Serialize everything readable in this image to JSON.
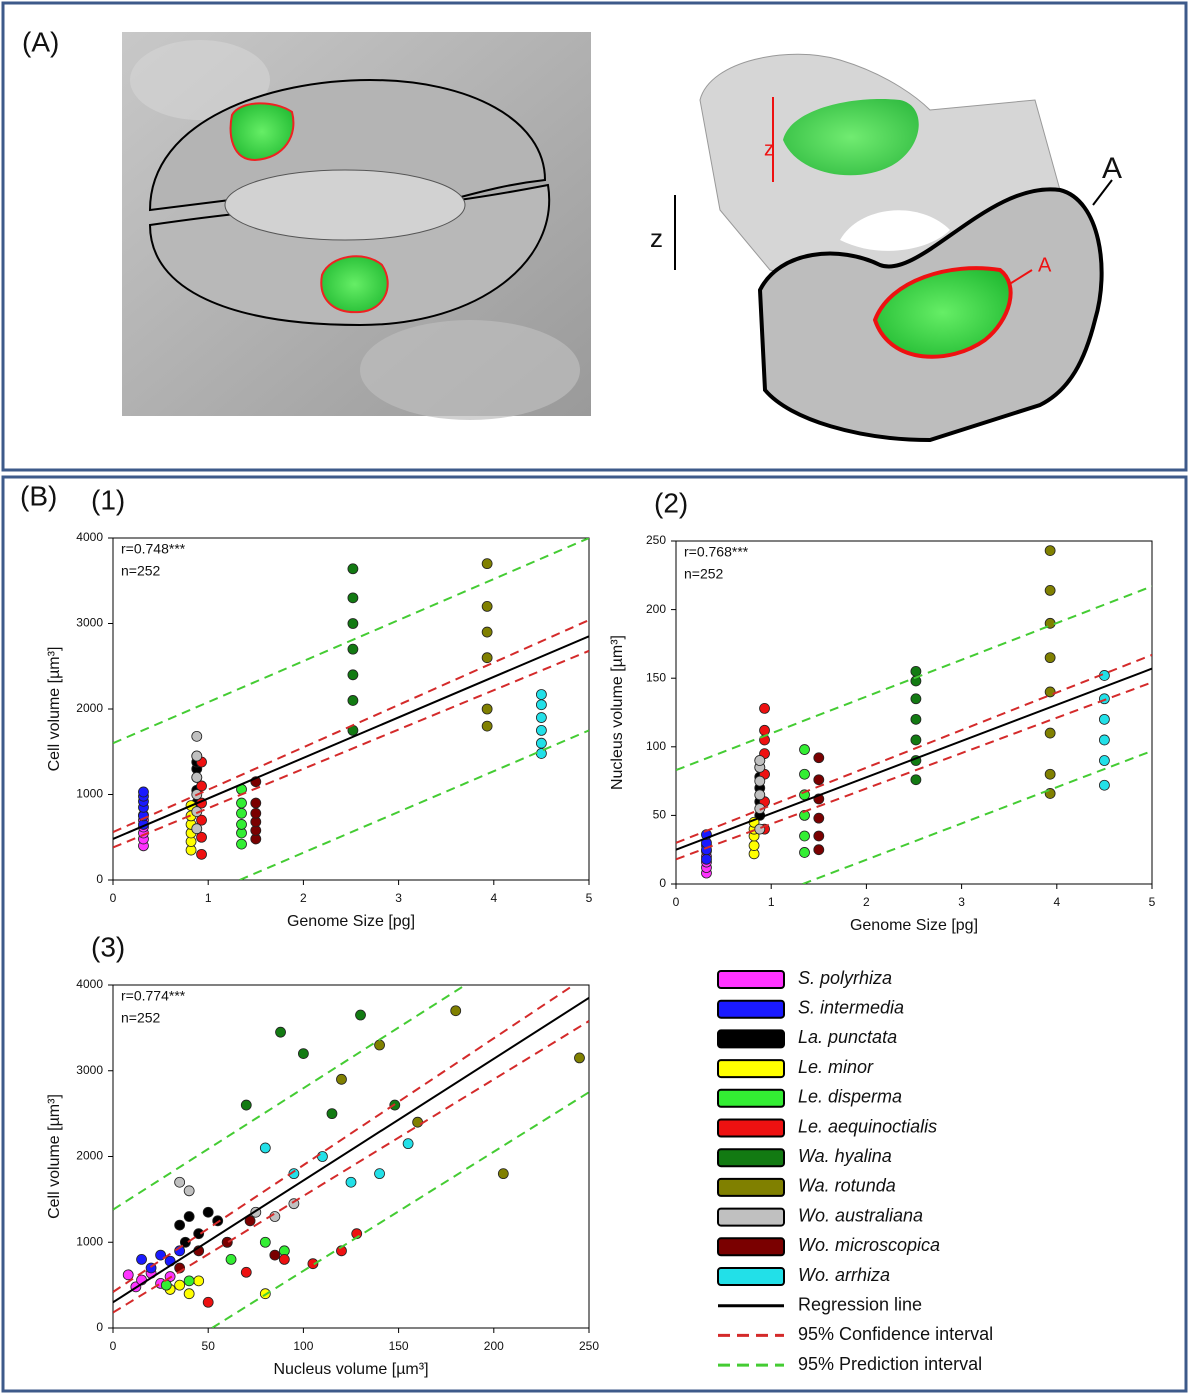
{
  "panel_a": {
    "label": "(A)",
    "annotations": [
      "z",
      "A",
      "z",
      "A"
    ]
  },
  "panel_b": {
    "label": "(B)"
  },
  "chart_data": [
    {
      "type": "scatter",
      "label": "(1)",
      "annotations": [
        "r=0.748***",
        "n=252"
      ],
      "xlabel": "Genome Size [pg]",
      "ylabel": "Cell volume [µm³]",
      "xlim": [
        0,
        5
      ],
      "xticks": [
        0,
        1,
        2,
        3,
        4,
        5
      ],
      "ylim": [
        0,
        4000
      ],
      "yticks": [
        0,
        1000,
        2000,
        3000,
        4000
      ],
      "series": [
        {
          "color": "#ff33ff",
          "x": [
            0.32,
            0.32,
            0.32,
            0.32,
            0.32,
            0.32
          ],
          "values": [
            400,
            480,
            550,
            620,
            700,
            760
          ]
        },
        {
          "color": "#1a1aff",
          "x": [
            0.32,
            0.32,
            0.32,
            0.32,
            0.32,
            0.32
          ],
          "values": [
            650,
            750,
            850,
            920,
            980,
            1030
          ]
        },
        {
          "color": "#000000",
          "x": [
            0.88,
            0.88,
            0.88,
            0.88,
            0.88,
            0.88
          ],
          "values": [
            900,
            1050,
            1200,
            1300,
            1380,
            1450
          ]
        },
        {
          "color": "#ffff00",
          "x": [
            0.82,
            0.82,
            0.82,
            0.82,
            0.82,
            0.82
          ],
          "values": [
            350,
            450,
            550,
            650,
            750,
            870
          ]
        },
        {
          "color": "#33ee33",
          "x": [
            1.35,
            1.35,
            1.35,
            1.35,
            1.35,
            1.35
          ],
          "values": [
            420,
            550,
            650,
            780,
            900,
            1060
          ]
        },
        {
          "color": "#ee1111",
          "x": [
            0.93,
            0.93,
            0.93,
            0.93,
            0.93,
            0.93
          ],
          "values": [
            300,
            500,
            700,
            900,
            1100,
            1380
          ]
        },
        {
          "color": "#127a12",
          "x": [
            2.52,
            2.52,
            2.52,
            2.52,
            2.52,
            2.52,
            2.52
          ],
          "values": [
            1750,
            2100,
            2400,
            2700,
            3000,
            3300,
            3640
          ]
        },
        {
          "color": "#808000",
          "x": [
            3.93,
            3.93,
            3.93,
            3.93,
            3.93,
            3.93
          ],
          "values": [
            1800,
            2000,
            2600,
            2900,
            3200,
            3700
          ]
        },
        {
          "color": "#c0c0c0",
          "x": [
            0.88,
            0.88,
            0.88,
            0.88,
            0.88,
            0.88
          ],
          "values": [
            600,
            800,
            1000,
            1200,
            1450,
            1680
          ]
        },
        {
          "color": "#7a0000",
          "x": [
            1.5,
            1.5,
            1.5,
            1.5,
            1.5,
            1.5
          ],
          "values": [
            480,
            580,
            680,
            780,
            900,
            1150
          ]
        },
        {
          "color": "#22e0e8",
          "x": [
            4.5,
            4.5,
            4.5,
            4.5,
            4.5,
            4.5
          ],
          "values": [
            1480,
            1600,
            1750,
            1900,
            2050,
            2170
          ]
        }
      ],
      "lines": [
        {
          "color": "#000000",
          "style": "solid",
          "x": [
            0,
            5
          ],
          "y": [
            480,
            2850
          ]
        },
        {
          "color": "#d42a2a",
          "style": "dashed",
          "x": [
            0,
            5
          ],
          "y": [
            560,
            3040
          ]
        },
        {
          "color": "#d42a2a",
          "style": "dashed",
          "x": [
            0,
            5
          ],
          "y": [
            380,
            2680
          ]
        },
        {
          "color": "#44cc33",
          "style": "dashed",
          "x": [
            0,
            5
          ],
          "y": [
            1600,
            4000
          ]
        },
        {
          "color": "#44cc33",
          "style": "dashed",
          "x": [
            1.33,
            5
          ],
          "y": [
            0,
            1750
          ]
        }
      ]
    },
    {
      "type": "scatter",
      "label": "(2)",
      "annotations": [
        "r=0.768***",
        "n=252"
      ],
      "xlabel": "Genome Size [pg]",
      "ylabel": "Nucleus volume [µm³]",
      "xlim": [
        0,
        5
      ],
      "xticks": [
        0,
        1,
        2,
        3,
        4,
        5
      ],
      "ylim": [
        0,
        250
      ],
      "yticks": [
        0,
        50,
        100,
        150,
        200,
        250
      ],
      "series": [
        {
          "color": "#ff33ff",
          "x": [
            0.32,
            0.32,
            0.32,
            0.32,
            0.32,
            0.32
          ],
          "values": [
            8,
            12,
            16,
            20,
            24,
            28
          ]
        },
        {
          "color": "#1a1aff",
          "x": [
            0.32,
            0.32,
            0.32,
            0.32
          ],
          "values": [
            18,
            25,
            30,
            36
          ]
        },
        {
          "color": "#000000",
          "x": [
            0.88,
            0.88,
            0.88,
            0.88,
            0.88,
            0.88
          ],
          "values": [
            50,
            60,
            70,
            78,
            85,
            90
          ]
        },
        {
          "color": "#ffff00",
          "x": [
            0.82,
            0.82,
            0.82,
            0.82,
            0.82
          ],
          "values": [
            22,
            28,
            35,
            40,
            45
          ]
        },
        {
          "color": "#33ee33",
          "x": [
            1.35,
            1.35,
            1.35,
            1.35,
            1.35,
            1.35
          ],
          "values": [
            23,
            35,
            50,
            65,
            80,
            98
          ]
        },
        {
          "color": "#ee1111",
          "x": [
            0.93,
            0.93,
            0.93,
            0.93,
            0.93,
            0.93,
            0.93
          ],
          "values": [
            40,
            60,
            80,
            95,
            105,
            112,
            128
          ]
        },
        {
          "color": "#127a12",
          "x": [
            2.52,
            2.52,
            2.52,
            2.52,
            2.52,
            2.52,
            2.52
          ],
          "values": [
            76,
            90,
            105,
            120,
            135,
            148,
            155
          ]
        },
        {
          "color": "#808000",
          "x": [
            3.93,
            3.93,
            3.93,
            3.93,
            3.93,
            3.93,
            3.93,
            3.93
          ],
          "values": [
            66,
            80,
            110,
            140,
            165,
            190,
            214,
            243
          ]
        },
        {
          "color": "#c0c0c0",
          "x": [
            0.88,
            0.88,
            0.88,
            0.88,
            0.88,
            0.88
          ],
          "values": [
            40,
            55,
            65,
            75,
            85,
            90
          ]
        },
        {
          "color": "#7a0000",
          "x": [
            1.5,
            1.5,
            1.5,
            1.5,
            1.5,
            1.5
          ],
          "values": [
            25,
            35,
            48,
            62,
            76,
            92
          ]
        },
        {
          "color": "#22e0e8",
          "x": [
            4.5,
            4.5,
            4.5,
            4.5,
            4.5,
            4.5
          ],
          "values": [
            72,
            90,
            105,
            120,
            135,
            152
          ]
        }
      ],
      "lines": [
        {
          "color": "#000000",
          "style": "solid",
          "x": [
            0,
            5
          ],
          "y": [
            25,
            157
          ]
        },
        {
          "color": "#d42a2a",
          "style": "dashed",
          "x": [
            0,
            5
          ],
          "y": [
            30,
            167
          ]
        },
        {
          "color": "#d42a2a",
          "style": "dashed",
          "x": [
            0,
            5
          ],
          "y": [
            18,
            147
          ]
        },
        {
          "color": "#44cc33",
          "style": "dashed",
          "x": [
            0,
            5
          ],
          "y": [
            83,
            217
          ]
        },
        {
          "color": "#44cc33",
          "style": "dashed",
          "x": [
            1.33,
            5
          ],
          "y": [
            0,
            97
          ]
        }
      ]
    },
    {
      "type": "scatter",
      "label": "(3)",
      "annotations": [
        "r=0.774***",
        "n=252"
      ],
      "xlabel": "Nucleus volume [µm³]",
      "ylabel": "Cell volume [µm³]",
      "xlim": [
        0,
        250
      ],
      "xticks": [
        0,
        50,
        100,
        150,
        200,
        250
      ],
      "ylim": [
        0,
        4000
      ],
      "yticks": [
        0,
        1000,
        2000,
        3000,
        4000
      ],
      "series": [
        {
          "name": "S. polyrhiza",
          "color": "#ff33ff",
          "x": [
            8,
            12,
            15,
            20,
            25,
            30
          ],
          "values": [
            620,
            480,
            560,
            640,
            520,
            600
          ]
        },
        {
          "name": "S. intermedia",
          "color": "#1a1aff",
          "x": [
            15,
            20,
            25,
            30,
            35
          ],
          "values": [
            800,
            700,
            850,
            780,
            900
          ]
        },
        {
          "name": "La. punctata",
          "color": "#000000",
          "x": [
            35,
            40,
            45,
            50,
            55,
            38
          ],
          "values": [
            1200,
            1300,
            1100,
            1350,
            1250,
            1000
          ]
        },
        {
          "name": "Le. minor",
          "color": "#ffff00",
          "x": [
            30,
            35,
            40,
            45,
            80
          ],
          "values": [
            450,
            500,
            400,
            550,
            400
          ]
        },
        {
          "name": "Le. disperma",
          "color": "#33ee33",
          "x": [
            28,
            40,
            62,
            80,
            90
          ],
          "values": [
            500,
            550,
            800,
            1000,
            900
          ]
        },
        {
          "name": "Le. aequinoctialis",
          "color": "#ee1111",
          "x": [
            50,
            70,
            90,
            105,
            120,
            128
          ],
          "values": [
            300,
            650,
            800,
            750,
            900,
            1100
          ]
        },
        {
          "name": "Wa. hyalina",
          "color": "#127a12",
          "x": [
            70,
            88,
            100,
            115,
            130,
            148
          ],
          "values": [
            2600,
            3450,
            3200,
            2500,
            3650,
            2600
          ]
        },
        {
          "name": "Wa. rotunda",
          "color": "#808000",
          "x": [
            120,
            140,
            160,
            180,
            205,
            245
          ],
          "values": [
            2900,
            3300,
            2400,
            3700,
            1800,
            3150
          ]
        },
        {
          "name": "Wo. australiana",
          "color": "#c0c0c0",
          "x": [
            35,
            60,
            75,
            85,
            95,
            40
          ],
          "values": [
            1700,
            1000,
            1350,
            1300,
            1450,
            1600
          ]
        },
        {
          "name": "Wo. microscopica",
          "color": "#7a0000",
          "x": [
            35,
            45,
            60,
            72,
            85
          ],
          "values": [
            700,
            900,
            1000,
            1250,
            850
          ]
        },
        {
          "name": "Wo. arrhiza",
          "color": "#22e0e8",
          "x": [
            80,
            95,
            110,
            125,
            140,
            155
          ],
          "values": [
            2100,
            1800,
            2000,
            1700,
            1800,
            2150
          ]
        }
      ],
      "lines": [
        {
          "name": "Regression line",
          "color": "#000000",
          "style": "solid",
          "x": [
            0,
            250
          ],
          "y": [
            300,
            3850
          ]
        },
        {
          "name": "95% Confidence interval",
          "color": "#d42a2a",
          "style": "dashed",
          "x": [
            0,
            242
          ],
          "y": [
            420,
            4000
          ]
        },
        {
          "color": "#d42a2a",
          "style": "dashed",
          "x": [
            0,
            250
          ],
          "y": [
            180,
            3580
          ]
        },
        {
          "name": "95% Prediction interval",
          "color": "#44cc33",
          "style": "dashed",
          "x": [
            0,
            185
          ],
          "y": [
            1380,
            4000
          ]
        },
        {
          "color": "#44cc33",
          "style": "dashed",
          "x": [
            52,
            250
          ],
          "y": [
            0,
            2750
          ]
        }
      ]
    }
  ]
}
